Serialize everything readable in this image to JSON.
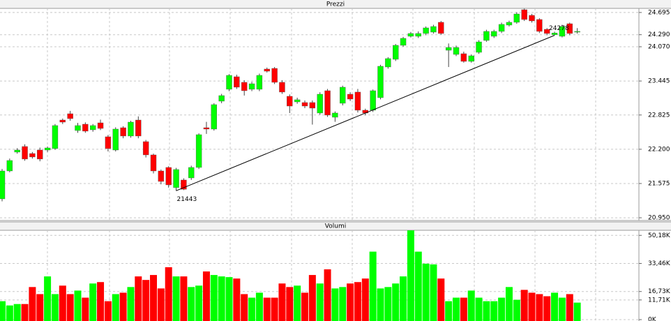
{
  "chart_data": [
    {
      "type": "candlestick",
      "title": "Prezzi",
      "open": [
        21295,
        21804,
        22148,
        22250,
        22122,
        22186,
        22186,
        22212,
        22733,
        22848,
        22542,
        22657,
        22555,
        22682,
        22428,
        22186,
        22593,
        22441,
        22733,
        22339,
        22097,
        21804,
        21868,
        21500,
        21639,
        21677,
        21868,
        22593,
        22568,
        23077,
        23294,
        23523,
        23421,
        23294,
        23294,
        23663,
        23675,
        23421,
        23166,
        23064,
        23052,
        23052,
        22861,
        23268,
        22784,
        23039,
        23204,
        23243,
        22912,
        22912,
        23141,
        23701,
        23841,
        24096,
        24261,
        24261,
        24312,
        24337,
        24516,
        24006,
        23930,
        23943,
        23803,
        23968,
        24185,
        24261,
        24350,
        24465,
        24516,
        24745,
        24643,
        24567,
        24388,
        24290,
        24261,
        24490,
        24337
      ],
      "high": [
        21840,
        22030,
        22220,
        22290,
        22150,
        22230,
        22250,
        22660,
        22760,
        22900,
        22680,
        22690,
        22660,
        22740,
        22460,
        22600,
        22620,
        22720,
        22800,
        22370,
        22120,
        21830,
        21890,
        21860,
        21670,
        21900,
        22490,
        22700,
        23040,
        23210,
        23570,
        23560,
        23460,
        23430,
        23580,
        23690,
        23700,
        23460,
        23200,
        23140,
        23090,
        23090,
        23240,
        23300,
        22890,
        23360,
        23240,
        23300,
        22940,
        23290,
        23740,
        23880,
        24120,
        24250,
        24340,
        24350,
        24440,
        24470,
        24540,
        24130,
        24090,
        23980,
        23930,
        24190,
        24380,
        24380,
        24510,
        24545,
        24700,
        24765,
        24670,
        24590,
        24410,
        24345,
        24470,
        24510,
        24410
      ],
      "low": [
        21250,
        21780,
        22120,
        21990,
        22030,
        21980,
        22150,
        22190,
        22660,
        22720,
        22500,
        22500,
        22520,
        22550,
        22160,
        22160,
        22400,
        22410,
        22400,
        22050,
        21760,
        21560,
        21500,
        21443,
        21455,
        21640,
        21840,
        22480,
        22540,
        23040,
        23260,
        23300,
        23180,
        23260,
        23260,
        23600,
        23390,
        23210,
        22860,
        23030,
        22950,
        22650,
        22830,
        22790,
        22700,
        23000,
        23080,
        22870,
        22820,
        22880,
        23110,
        23670,
        23810,
        24070,
        24240,
        24230,
        24280,
        24310,
        24290,
        23700,
        23900,
        23780,
        23780,
        23940,
        24160,
        24230,
        24320,
        24440,
        24490,
        24540,
        24510,
        24320,
        24280,
        24278,
        24240,
        24280,
        24310
      ],
      "close": [
        21804,
        21995,
        22186,
        22021,
        22059,
        22021,
        22224,
        22632,
        22695,
        22759,
        22632,
        22530,
        22632,
        22580,
        22212,
        22568,
        22441,
        22695,
        22441,
        22097,
        21804,
        21613,
        21550,
        21830,
        21470,
        21868,
        22466,
        22568,
        23014,
        23179,
        23548,
        23332,
        23268,
        23395,
        23548,
        23624,
        23421,
        23243,
        22988,
        23103,
        22988,
        22950,
        23204,
        22823,
        22861,
        23332,
        23115,
        22912,
        22861,
        23268,
        23714,
        23854,
        24096,
        24223,
        24312,
        24312,
        24414,
        24439,
        24312,
        24057,
        24057,
        23803,
        23905,
        24159,
        24350,
        24350,
        24478,
        24516,
        24668,
        24567,
        24541,
        24350,
        24312,
        24320,
        24439,
        24312,
        24350
      ],
      "up_color": "#00ff00",
      "down_color": "#ff0000",
      "ylim": [
        20900,
        24770
      ],
      "yticks": [
        {
          "value": 24695,
          "label": "24.695"
        },
        {
          "value": 24290,
          "label": "24.290"
        },
        {
          "value": 24070,
          "label": "24.070"
        },
        {
          "value": 23445,
          "label": "23.445"
        },
        {
          "value": 22825,
          "label": "22.825"
        },
        {
          "value": 22200,
          "label": "22.200"
        },
        {
          "value": 21575,
          "label": "21.575"
        },
        {
          "value": 20950,
          "label": "20.950"
        }
      ],
      "grid": true,
      "annotations": [
        {
          "candle": 23,
          "value": 21443
        },
        {
          "candle": 73,
          "value": 24278
        }
      ]
    },
    {
      "type": "bar",
      "title": "Volumi",
      "values": [
        10964,
        8434,
        9277,
        9277,
        19398,
        15181,
        25724,
        15181,
        20242,
        15181,
        17290,
        13073,
        21507,
        22350,
        10964,
        15181,
        16025,
        19398,
        25724,
        23615,
        26567,
        18555,
        31206,
        25724,
        25724,
        19398,
        20242,
        28676,
        26567,
        25724,
        25302,
        24459,
        15181,
        13073,
        16025,
        13073,
        13073,
        21507,
        19398,
        20242,
        16025,
        26567,
        21507,
        29941,
        18555,
        19398,
        21507,
        22350,
        24459,
        40483,
        18555,
        19398,
        21507,
        25724,
        53134,
        40483,
        33314,
        32893,
        24459,
        10964,
        13073,
        13073,
        17290,
        13073,
        10964,
        10964,
        13073,
        19398,
        11808,
        17711,
        16025,
        15181,
        13916,
        16025,
        13073,
        15181,
        10121
      ],
      "ylim": [
        0,
        53200
      ],
      "yticks": [
        {
          "value": 50180,
          "label": "50,18K"
        },
        {
          "value": 33460,
          "label": "33,46K"
        },
        {
          "value": 16730,
          "label": "16,73K"
        },
        {
          "value": 11710,
          "label": "11,71K"
        },
        {
          "value": 0,
          "label": "0K"
        }
      ],
      "grid": true
    }
  ]
}
